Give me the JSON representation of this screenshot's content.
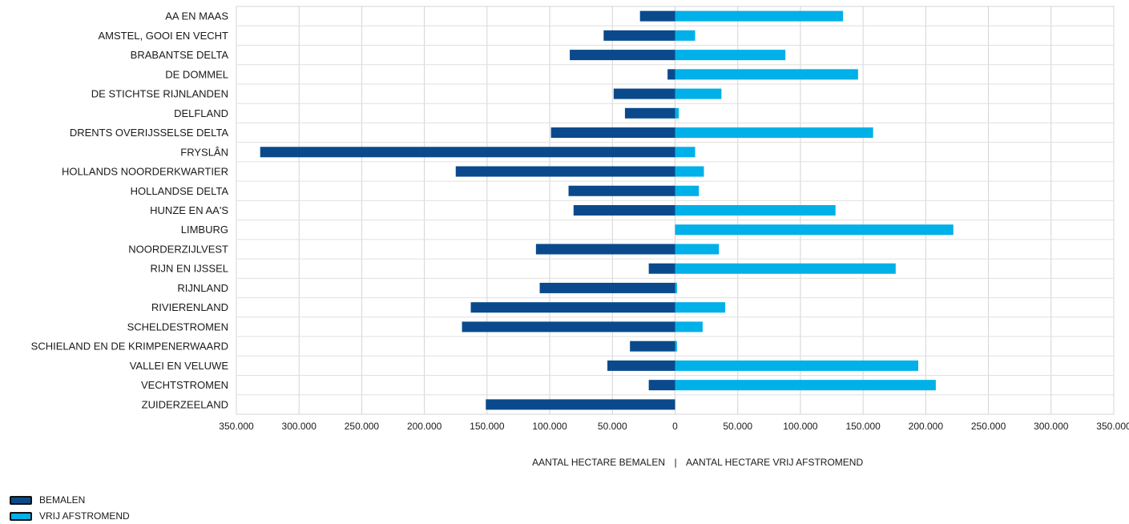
{
  "chart_data": {
    "type": "bar",
    "orientation": "horizontal",
    "layout": "diverging",
    "categories": [
      "AA EN MAAS",
      "AMSTEL, GOOI EN VECHT",
      "BRABANTSE DELTA",
      "DE DOMMEL",
      "DE STICHTSE RIJNLANDEN",
      "DELFLAND",
      "DRENTS OVERIJSSELSE DELTA",
      "FRYSLÂN",
      "HOLLANDS NOORDERKWARTIER",
      "HOLLANDSE DELTA",
      "HUNZE EN AA'S",
      "LIMBURG",
      "NOORDERZIJLVEST",
      "RIJN EN IJSSEL",
      "RIJNLAND",
      "RIVIERENLAND",
      "SCHELDESTROMEN",
      "SCHIELAND EN DE KRIMPENERWAARD",
      "VALLEI EN VELUWE",
      "VECHTSTROMEN",
      "ZUIDERZEELAND"
    ],
    "series": [
      {
        "name": "BEMALEN",
        "color": "#0a4a8c",
        "values": [
          28000,
          57000,
          84000,
          6000,
          49000,
          40000,
          99000,
          331000,
          175000,
          85000,
          81000,
          0,
          111000,
          21000,
          108000,
          163000,
          170000,
          36000,
          54000,
          21000,
          151000
        ]
      },
      {
        "name": "VRIJ AFSTROMEND",
        "color": "#00b0e8",
        "values": [
          134000,
          16000,
          88000,
          146000,
          37000,
          3000,
          158000,
          16000,
          23000,
          19000,
          128000,
          222000,
          35000,
          176000,
          1500,
          40000,
          22000,
          1500,
          194000,
          208000,
          0
        ]
      }
    ],
    "xlim": [
      -350000,
      350000
    ],
    "tick_values": [
      -350000,
      -300000,
      -250000,
      -200000,
      -150000,
      -100000,
      -50000,
      0,
      50000,
      100000,
      150000,
      200000,
      250000,
      300000,
      350000
    ],
    "tick_labels": [
      "350.000",
      "300.000",
      "250.000",
      "200.000",
      "150.000",
      "100.000",
      "50.000",
      "0",
      "50.000",
      "100.000",
      "150.000",
      "200.000",
      "250.000",
      "300.000",
      "350.000"
    ],
    "xlabel_left": "AANTAL HECTARE BEMALEN",
    "xlabel_separator": "|",
    "xlabel_right": "AANTAL HECTARE VRIJ AFSTROMEND",
    "grid": true,
    "legend_position": "bottom-left"
  },
  "legend": [
    {
      "label": "BEMALEN",
      "color": "#0a4a8c"
    },
    {
      "label": "VRIJ AFSTROMEND",
      "color": "#00b0e8"
    }
  ]
}
